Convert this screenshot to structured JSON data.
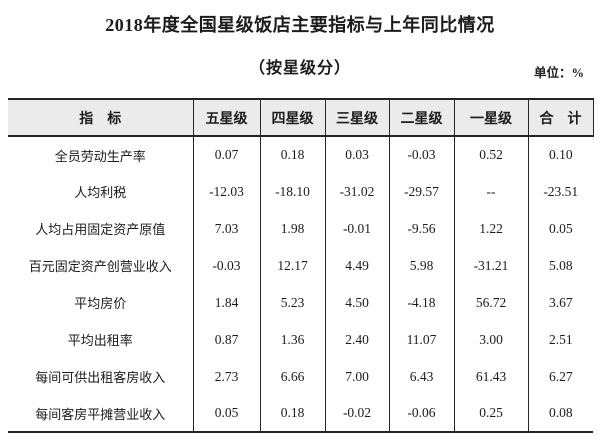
{
  "page": {
    "title": "2018年度全国星级饭店主要指标与上年同比情况",
    "subtitle": "（按星级分）",
    "unit_label": "单位：%"
  },
  "table": {
    "headers": [
      "指　标",
      "五星级",
      "四星级",
      "三星级",
      "二星级",
      "一星级",
      "合　计"
    ],
    "rows": [
      {
        "label": "全员劳动生产率",
        "values": [
          "0.07",
          "0.18",
          "0.03",
          "-0.03",
          "0.52",
          "0.10"
        ]
      },
      {
        "label": "人均利税",
        "values": [
          "-12.03",
          "-18.10",
          "-31.02",
          "-29.57",
          "--",
          "-23.51"
        ]
      },
      {
        "label": "人均占用固定资产原值",
        "values": [
          "7.03",
          "1.98",
          "-0.01",
          "-9.56",
          "1.22",
          "0.05"
        ]
      },
      {
        "label": "百元固定资产创营业收入",
        "values": [
          "-0.03",
          "12.17",
          "4.49",
          "5.98",
          "-31.21",
          "5.08"
        ]
      },
      {
        "label": "平均房价",
        "values": [
          "1.84",
          "5.23",
          "4.50",
          "-4.18",
          "56.72",
          "3.67"
        ]
      },
      {
        "label": "平均出租率",
        "values": [
          "0.87",
          "1.36",
          "2.40",
          "11.07",
          "3.00",
          "2.51"
        ]
      },
      {
        "label": "每间可供出租客房收入",
        "values": [
          "2.73",
          "6.66",
          "7.00",
          "6.43",
          "61.43",
          "6.27"
        ]
      },
      {
        "label": "每间客房平摊营业收入",
        "values": [
          "0.05",
          "0.18",
          "-0.02",
          "-0.06",
          "0.25",
          "0.08"
        ]
      }
    ]
  },
  "chart_data": {
    "type": "table",
    "title": "2018年度全国星级饭店主要指标与上年同比情况（按星级分）",
    "unit": "%",
    "columns": [
      "指标",
      "五星级",
      "四星级",
      "三星级",
      "二星级",
      "一星级",
      "合计"
    ],
    "rows": [
      [
        "全员劳动生产率",
        0.07,
        0.18,
        0.03,
        -0.03,
        0.52,
        0.1
      ],
      [
        "人均利税",
        -12.03,
        -18.1,
        -31.02,
        -29.57,
        "--",
        -23.51
      ],
      [
        "人均占用固定资产原值",
        7.03,
        1.98,
        -0.01,
        -9.56,
        1.22,
        0.05
      ],
      [
        "百元固定资产创营业收入",
        -0.03,
        12.17,
        4.49,
        5.98,
        -31.21,
        5.08
      ],
      [
        "平均房价",
        1.84,
        5.23,
        4.5,
        -4.18,
        56.72,
        3.67
      ],
      [
        "平均出租率",
        0.87,
        1.36,
        2.4,
        11.07,
        3.0,
        2.51
      ],
      [
        "每间可供出租客房收入",
        2.73,
        6.66,
        7.0,
        6.43,
        61.43,
        6.27
      ],
      [
        "每间客房平摊营业收入",
        0.05,
        0.18,
        -0.02,
        -0.06,
        0.25,
        0.08
      ]
    ]
  }
}
